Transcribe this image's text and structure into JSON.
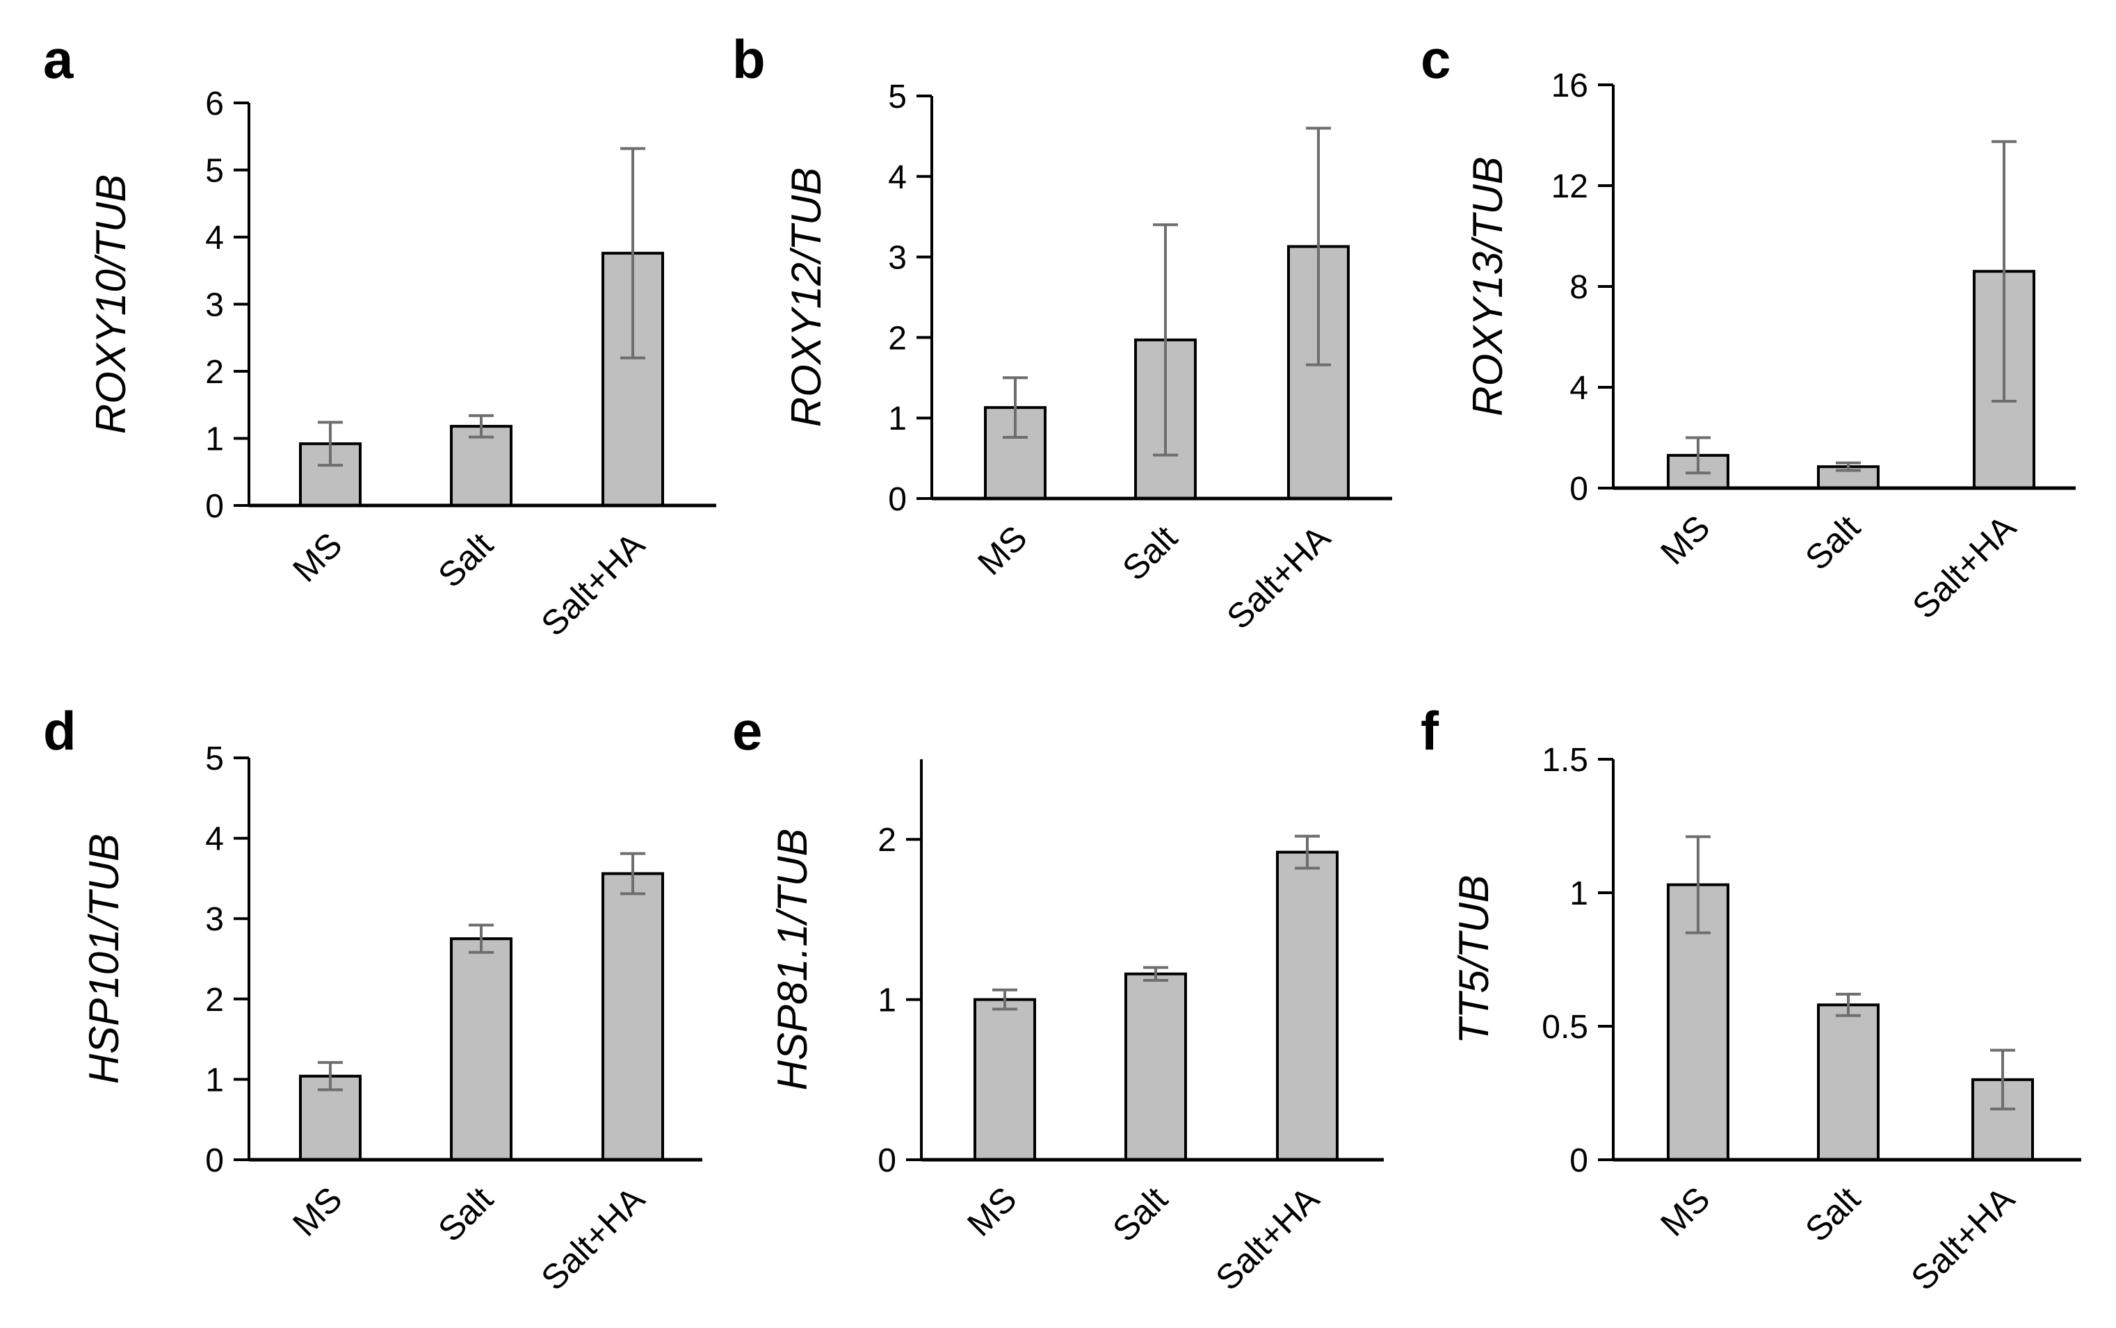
{
  "figure": {
    "bar_fill": "#bfbfbf",
    "bar_stroke": "#000000",
    "error_bar_color": "#6e6e6e",
    "axis_color": "#000000"
  },
  "chart_data": [
    {
      "panel": "a",
      "type": "bar",
      "ylabel": "ROXY10/TUB",
      "categories": [
        "MS",
        "Salt",
        "Salt+HA"
      ],
      "values": [
        0.92,
        1.18,
        3.76
      ],
      "errors": [
        0.32,
        0.16,
        1.56
      ],
      "ylim": [
        0,
        6
      ],
      "yticks": [
        "0",
        "1",
        "2",
        "3",
        "4",
        "5",
        "6"
      ]
    },
    {
      "panel": "b",
      "type": "bar",
      "ylabel": "ROXY12/TUB",
      "categories": [
        "MS",
        "Salt",
        "Salt+HA"
      ],
      "values": [
        1.13,
        1.97,
        3.13
      ],
      "errors": [
        0.37,
        1.43,
        1.47
      ],
      "ylim": [
        0,
        5
      ],
      "yticks": [
        "0",
        "1",
        "2",
        "3",
        "4",
        "5"
      ]
    },
    {
      "panel": "c",
      "type": "bar",
      "ylabel": "ROXY13/TUB",
      "categories": [
        "MS",
        "Salt",
        "Salt+HA"
      ],
      "values": [
        1.3,
        0.85,
        8.6
      ],
      "errors": [
        0.7,
        0.15,
        5.15
      ],
      "ylim": [
        0,
        16
      ],
      "yticks": [
        "0",
        "4",
        "8",
        "12",
        "16"
      ]
    },
    {
      "panel": "d",
      "type": "bar",
      "ylabel": "HSP101/TUB",
      "categories": [
        "MS",
        "Salt",
        "Salt+HA"
      ],
      "values": [
        1.04,
        2.75,
        3.56
      ],
      "errors": [
        0.17,
        0.17,
        0.25
      ],
      "ylim": [
        0,
        5
      ],
      "yticks": [
        "0",
        "1",
        "2",
        "3",
        "4",
        "5"
      ]
    },
    {
      "panel": "e",
      "type": "bar",
      "ylabel": "HSP81.1/TUB",
      "categories": [
        "MS",
        "Salt",
        "Salt+HA"
      ],
      "values": [
        1.0,
        1.16,
        1.92
      ],
      "errors": [
        0.06,
        0.04,
        0.1
      ],
      "ylim": [
        0,
        2.5
      ],
      "yticks": [
        "0",
        "1",
        "2"
      ]
    },
    {
      "panel": "f",
      "type": "bar",
      "ylabel": "TT5/TUB",
      "categories": [
        "MS",
        "Salt",
        "Salt+HA"
      ],
      "values": [
        1.03,
        0.58,
        0.3
      ],
      "errors": [
        0.18,
        0.04,
        0.11
      ],
      "ylim": [
        0,
        1.5
      ],
      "yticks": [
        "0",
        "0.5",
        "1",
        "1.5"
      ]
    }
  ]
}
